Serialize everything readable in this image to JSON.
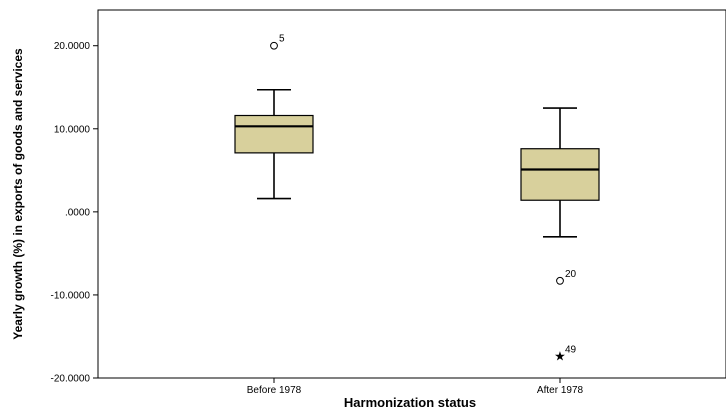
{
  "chart_data": {
    "type": "boxplot",
    "xlabel": "Harmonization status",
    "ylabel": "Yearly growth (%) in exports of goods and services",
    "ylim": [
      -20,
      24.3
    ],
    "yticks": [
      {
        "value": 20,
        "label": "20.0000"
      },
      {
        "value": 10,
        "label": "10.0000"
      },
      {
        "value": 0,
        "label": ".0000"
      },
      {
        "value": -10,
        "label": "-10.0000"
      },
      {
        "value": -20,
        "label": "-20.0000"
      }
    ],
    "grid": false,
    "box_color": "#d8d09c",
    "groups": [
      {
        "category": "Before 1978",
        "whisker_low": 1.6,
        "q1": 7.1,
        "median": 10.3,
        "q3": 11.6,
        "whisker_high": 14.7,
        "outliers": [
          {
            "value": 20.0,
            "label": "5",
            "marker": "circle"
          }
        ]
      },
      {
        "category": "After 1978",
        "whisker_low": -3.0,
        "q1": 1.4,
        "median": 5.1,
        "q3": 7.6,
        "whisker_high": 12.5,
        "outliers": [
          {
            "value": -8.3,
            "label": "20",
            "marker": "circle"
          },
          {
            "value": -17.4,
            "label": "49",
            "marker": "star"
          }
        ]
      }
    ]
  }
}
